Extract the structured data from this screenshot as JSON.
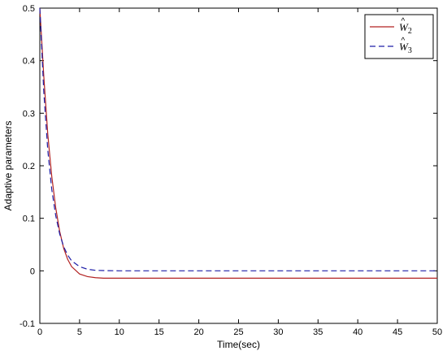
{
  "chart_data": {
    "type": "line",
    "title": "",
    "xlabel": "Time(sec)",
    "ylabel": "Adaptive parameters",
    "xlim": [
      0,
      50
    ],
    "ylim": [
      -0.1,
      0.5
    ],
    "x_ticks": [
      0,
      5,
      10,
      15,
      20,
      25,
      30,
      35,
      40,
      45,
      50
    ],
    "y_ticks": [
      -0.1,
      0,
      0.1,
      0.2,
      0.3,
      0.4,
      0.5
    ],
    "x_tick_labels": [
      "0",
      "5",
      "10",
      "15",
      "20",
      "25",
      "30",
      "35",
      "40",
      "45",
      "50"
    ],
    "y_tick_labels": [
      "-0.1",
      "0",
      "0.1",
      "0.2",
      "0.3",
      "0.4",
      "0.5"
    ],
    "grid": false,
    "legend_position": "top-right",
    "series": [
      {
        "name": "Ŵ2",
        "legend_base": "W",
        "legend_sub": "2",
        "color": "#b22222",
        "dash": "solid",
        "x": [
          0,
          0.5,
          1,
          1.5,
          2,
          2.5,
          3,
          3.5,
          4,
          5,
          6,
          7,
          8,
          10,
          15,
          20,
          30,
          40,
          50
        ],
        "y": [
          0.5,
          0.37,
          0.26,
          0.18,
          0.12,
          0.075,
          0.043,
          0.022,
          0.008,
          -0.006,
          -0.011,
          -0.013,
          -0.014,
          -0.014,
          -0.014,
          -0.014,
          -0.014,
          -0.014,
          -0.014
        ]
      },
      {
        "name": "Ŵ3",
        "legend_base": "W",
        "legend_sub": "3",
        "color": "#1f1fa8",
        "dash": "dashed",
        "x": [
          0,
          0.5,
          1,
          1.5,
          2,
          2.5,
          3,
          3.5,
          4,
          5,
          6,
          7,
          8,
          10,
          15,
          20,
          30,
          40,
          50
        ],
        "y": [
          0.5,
          0.34,
          0.23,
          0.155,
          0.105,
          0.07,
          0.046,
          0.03,
          0.019,
          0.008,
          0.003,
          0.001,
          0.0005,
          0,
          0,
          0,
          0,
          0,
          0
        ]
      }
    ]
  }
}
